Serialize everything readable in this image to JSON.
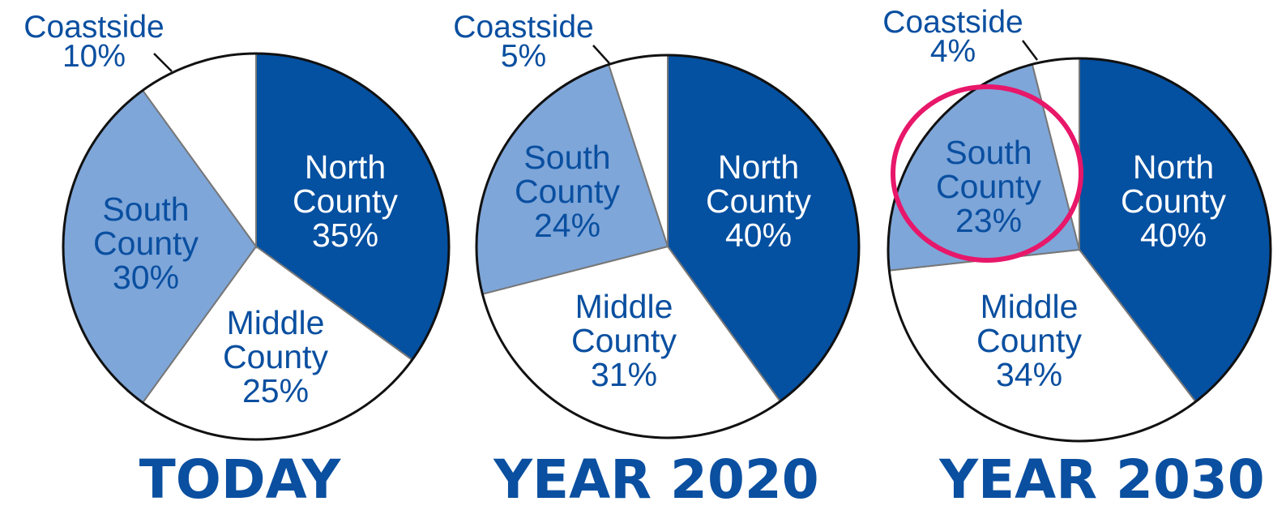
{
  "colors": {
    "north": "#0450a1",
    "south": "#7ea6d9",
    "middle": "#ffffff",
    "coastside": "#ffffff",
    "text": "#0a4fa0",
    "highlight": "#e8176a"
  },
  "chart_data": [
    {
      "type": "pie",
      "title": "TODAY",
      "slices": [
        {
          "key": "north",
          "label": [
            "North",
            "County",
            "35%"
          ],
          "value": 35
        },
        {
          "key": "middle",
          "label": [
            "Middle",
            "County",
            "25%"
          ],
          "value": 25
        },
        {
          "key": "south",
          "label": [
            "South",
            "County",
            "30%"
          ],
          "value": 30
        },
        {
          "key": "coastside",
          "label": [
            "Coastside",
            "10%"
          ],
          "value": 10
        }
      ],
      "highlighted": null
    },
    {
      "type": "pie",
      "title": "YEAR 2020",
      "slices": [
        {
          "key": "north",
          "label": [
            "North",
            "County",
            "40%"
          ],
          "value": 40
        },
        {
          "key": "middle",
          "label": [
            "Middle",
            "County",
            "31%"
          ],
          "value": 31
        },
        {
          "key": "south",
          "label": [
            "South",
            "County",
            "24%"
          ],
          "value": 24
        },
        {
          "key": "coastside",
          "label": [
            "Coastside",
            "5%"
          ],
          "value": 5
        }
      ],
      "highlighted": null
    },
    {
      "type": "pie",
      "title": "YEAR 2030",
      "slices": [
        {
          "key": "north",
          "label": [
            "North",
            "County",
            "40%"
          ],
          "value": 40
        },
        {
          "key": "middle",
          "label": [
            "Middle",
            "County",
            "34%"
          ],
          "value": 34
        },
        {
          "key": "south",
          "label": [
            "South",
            "County",
            "23%"
          ],
          "value": 23
        },
        {
          "key": "coastside",
          "label": [
            "Coastside",
            "4%"
          ],
          "value": 4
        }
      ],
      "highlighted": "south"
    }
  ]
}
